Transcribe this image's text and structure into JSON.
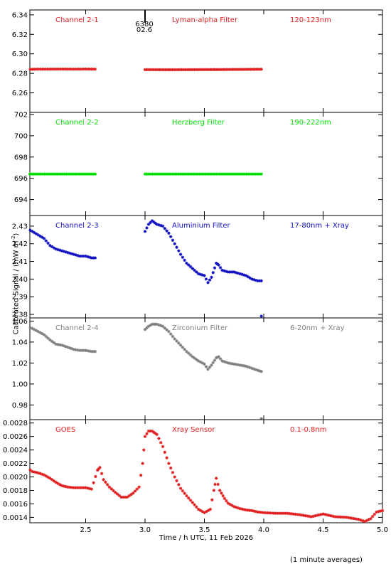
{
  "chart_data": [
    {
      "type": "scatter",
      "panel": "Channel 2-1",
      "color": "#e02020",
      "annotations": [
        "Channel 2-1",
        "Lyman-alpha Filter",
        "120-123nm"
      ],
      "ylim": [
        6.24,
        6.345
      ],
      "yticks": [
        "6.26",
        "6.28",
        "6.30",
        "6.32",
        "6.34"
      ],
      "yticks_values": [
        6.26,
        6.28,
        6.3,
        6.32,
        6.34
      ],
      "marker_labels": [
        "6380",
        "02.6"
      ],
      "marker_x": 3.0,
      "segments": [
        {
          "x": [
            2.0,
            2.1,
            2.2,
            2.3,
            2.4,
            2.5,
            2.58
          ],
          "y": [
            6.284,
            6.2843,
            6.2843,
            6.2844,
            6.2843,
            6.2844,
            6.2843
          ]
        },
        {
          "x": [
            3.0,
            3.2,
            3.4,
            3.6,
            3.8,
            3.98
          ],
          "y": [
            6.2838,
            6.2837,
            6.2838,
            6.2839,
            6.284,
            6.2842
          ]
        }
      ]
    },
    {
      "type": "scatter",
      "panel": "Channel 2-2",
      "color": "#00e000",
      "annotations": [
        "Channel 2-2",
        "Herzberg Filter",
        "190-222nm"
      ],
      "ylim": [
        692.5,
        702.2
      ],
      "yticks": [
        "694",
        "696",
        "698",
        "700",
        "702"
      ],
      "yticks_values": [
        694,
        696,
        698,
        700,
        702
      ],
      "segments": [
        {
          "x": [
            2.0,
            2.2,
            2.4,
            2.58
          ],
          "y": [
            696.4,
            696.4,
            696.4,
            696.4
          ]
        },
        {
          "x": [
            3.0,
            3.3,
            3.6,
            3.98
          ],
          "y": [
            696.4,
            696.4,
            696.4,
            696.4
          ]
        }
      ]
    },
    {
      "type": "scatter",
      "panel": "Channel 2-3",
      "color": "#1010c0",
      "annotations": [
        "Channel 2-3",
        "Aluminium Filter",
        "17-80nm + Xray"
      ],
      "ylim": [
        2.378,
        2.436
      ],
      "yticks": [
        "2.38",
        "2.39",
        "2.40",
        "2.41",
        "2.42",
        "2.43"
      ],
      "yticks_values": [
        2.38,
        2.39,
        2.4,
        2.41,
        2.42,
        2.43
      ],
      "segments": [
        {
          "x": [
            2.0,
            2.05,
            2.1,
            2.15,
            2.2,
            2.25,
            2.3,
            2.35,
            2.4,
            2.45,
            2.5,
            2.55,
            2.58
          ],
          "y": [
            2.429,
            2.427,
            2.425,
            2.423,
            2.419,
            2.417,
            2.416,
            2.415,
            2.414,
            2.413,
            2.413,
            2.412,
            2.412
          ]
        },
        {
          "x": [
            3.0,
            3.03,
            3.06,
            3.1,
            3.15,
            3.2,
            3.25,
            3.3,
            3.35,
            3.4,
            3.45,
            3.5,
            3.53,
            3.56,
            3.6,
            3.62,
            3.65,
            3.7,
            3.75,
            3.8,
            3.85,
            3.9,
            3.95,
            3.98
          ],
          "y": [
            2.427,
            2.431,
            2.433,
            2.431,
            2.43,
            2.426,
            2.42,
            2.414,
            2.409,
            2.406,
            2.403,
            2.402,
            2.398,
            2.401,
            2.409,
            2.408,
            2.405,
            2.404,
            2.404,
            2.403,
            2.402,
            2.4,
            2.399,
            2.399
          ]
        }
      ],
      "outliers": [
        {
          "x": 3.98,
          "y": 2.379
        }
      ]
    },
    {
      "type": "scatter",
      "panel": "Channel 2-4",
      "color": "#808080",
      "annotations": [
        "Channel 2-4",
        "Zirconium Filter",
        "6-20nm + Xray"
      ],
      "ylim": [
        0.966,
        1.063
      ],
      "yticks": [
        "0.98",
        "1.00",
        "1.02",
        "1.04",
        "1.06"
      ],
      "yticks_values": [
        0.98,
        1.0,
        1.02,
        1.04,
        1.06
      ],
      "segments": [
        {
          "x": [
            2.0,
            2.05,
            2.1,
            2.15,
            2.2,
            2.25,
            2.3,
            2.35,
            2.4,
            2.45,
            2.5,
            2.55,
            2.58
          ],
          "y": [
            1.055,
            1.053,
            1.05,
            1.047,
            1.042,
            1.038,
            1.037,
            1.035,
            1.033,
            1.032,
            1.032,
            1.031,
            1.031
          ]
        },
        {
          "x": [
            3.0,
            3.03,
            3.06,
            3.1,
            3.15,
            3.2,
            3.25,
            3.3,
            3.35,
            3.4,
            3.45,
            3.5,
            3.53,
            3.56,
            3.6,
            3.62,
            3.65,
            3.7,
            3.75,
            3.8,
            3.85,
            3.9,
            3.95,
            3.98
          ],
          "y": [
            1.052,
            1.055,
            1.057,
            1.057,
            1.055,
            1.05,
            1.043,
            1.037,
            1.031,
            1.026,
            1.022,
            1.019,
            1.014,
            1.018,
            1.025,
            1.026,
            1.022,
            1.02,
            1.019,
            1.018,
            1.017,
            1.015,
            1.013,
            1.012
          ]
        }
      ],
      "outliers": [
        {
          "x": 3.98,
          "y": 0.967
        }
      ]
    },
    {
      "type": "scatter",
      "panel": "GOES",
      "color": "#e02020",
      "annotations": [
        "GOES",
        "Xray Sensor",
        "0.1-0.8nm"
      ],
      "ylim": [
        0.00132,
        0.00285
      ],
      "yticks": [
        "0.0014",
        "0.0016",
        "0.0018",
        "0.0020",
        "0.0022",
        "0.0024",
        "0.0026",
        "0.0028"
      ],
      "yticks_values": [
        0.0014,
        0.0016,
        0.0018,
        0.002,
        0.0022,
        0.0024,
        0.0026,
        0.0028
      ],
      "segments": [
        {
          "x": [
            2.0,
            2.05,
            2.1,
            2.15,
            2.2,
            2.25,
            2.3,
            2.35,
            2.4,
            2.45,
            2.5,
            2.55,
            2.6,
            2.62,
            2.65,
            2.7,
            2.75,
            2.8,
            2.85,
            2.9,
            2.95,
            2.98,
            3.0,
            3.03,
            3.06,
            3.1,
            3.15,
            3.2,
            3.25,
            3.3,
            3.35,
            3.4,
            3.45,
            3.5,
            3.55,
            3.58,
            3.6,
            3.63,
            3.67,
            3.7,
            3.75,
            3.8,
            3.85,
            3.9,
            3.95,
            4.0,
            4.1,
            4.2,
            4.3,
            4.4,
            4.5,
            4.6,
            4.7,
            4.8,
            4.85,
            4.9,
            4.95,
            5.0
          ],
          "y": [
            0.00215,
            0.00208,
            0.00206,
            0.00203,
            0.00198,
            0.00192,
            0.00187,
            0.00185,
            0.00184,
            0.00184,
            0.00184,
            0.00182,
            0.0021,
            0.00214,
            0.00196,
            0.00185,
            0.00177,
            0.0017,
            0.0017,
            0.00176,
            0.00185,
            0.0022,
            0.0026,
            0.00268,
            0.00268,
            0.00263,
            0.00245,
            0.0022,
            0.002,
            0.00183,
            0.00172,
            0.00162,
            0.00152,
            0.00147,
            0.00152,
            0.0018,
            0.00198,
            0.0018,
            0.00168,
            0.00161,
            0.00156,
            0.00153,
            0.00151,
            0.0015,
            0.00148,
            0.00147,
            0.00146,
            0.00146,
            0.00144,
            0.00141,
            0.00145,
            0.00141,
            0.0014,
            0.00137,
            0.00134,
            0.00138,
            0.00148,
            0.0015
          ]
        }
      ]
    }
  ],
  "x_axis": {
    "xlim": [
      2.03,
      5.0
    ],
    "ticks": [
      "2.5",
      "3.0",
      "3.5",
      "4.0",
      "4.5",
      "5.0"
    ],
    "tick_values": [
      2.5,
      3.0,
      3.5,
      4.0,
      4.5,
      5.0
    ],
    "label": "Time / h UTC, 11 Feb 2026"
  },
  "y_axis_label": "Calibrated Signal / (mW m",
  "y_axis_label_sup": "-2",
  "y_axis_label_end": ")",
  "footer": "(1 minute averages)"
}
